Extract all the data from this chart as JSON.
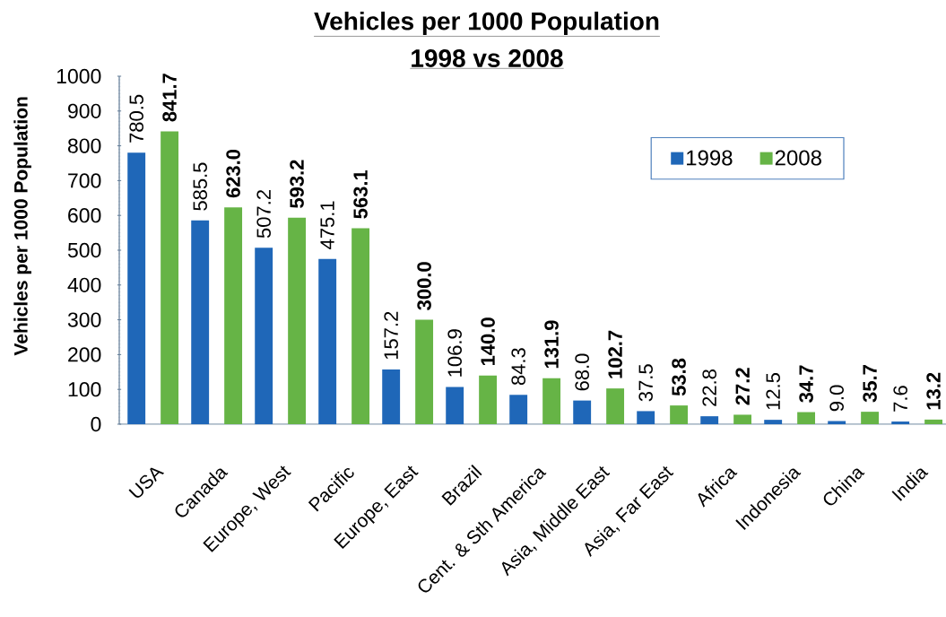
{
  "chart_data": {
    "type": "bar",
    "title": "Vehicles per 1000 Population",
    "subtitle": "1998 vs 2008",
    "ylabel": "Vehicles per 1000 Population",
    "categories": [
      "USA",
      "Canada",
      "Europe, West",
      "Pacific",
      "Europe, East",
      "Brazil",
      "Cent. & Sth America",
      "Asia, Middle East",
      "Asia, Far East",
      "Africa",
      "Indonesia",
      "China",
      "India"
    ],
    "series": [
      {
        "name": "1998",
        "color": "#1f67b8",
        "values": [
          780.5,
          585.5,
          507.2,
          475.1,
          157.2,
          106.9,
          84.3,
          68.0,
          37.5,
          22.8,
          12.5,
          9.0,
          7.6
        ],
        "value_labels": [
          "780.5",
          "585.5",
          "507.2",
          "475.1",
          "157.2",
          "106.9",
          "84.3",
          "68.0",
          "37.5",
          "22.8",
          "12.5",
          "9.0",
          "7.6"
        ]
      },
      {
        "name": "2008",
        "color": "#66b446",
        "values": [
          841.7,
          623.0,
          593.2,
          563.1,
          300.0,
          140.0,
          131.9,
          102.7,
          53.8,
          27.2,
          34.7,
          35.7,
          13.2
        ],
        "value_labels": [
          "841.7",
          "623.0",
          "593.2",
          "563.1",
          "300.0",
          "140.0",
          "131.9",
          "102.7",
          "53.8",
          "27.2",
          "34.7",
          "35.7",
          "13.2"
        ]
      }
    ],
    "ylim": [
      0,
      1000
    ],
    "yticks": [
      0,
      100,
      200,
      300,
      400,
      500,
      600,
      700,
      800,
      900,
      1000
    ],
    "legend": "top right"
  }
}
